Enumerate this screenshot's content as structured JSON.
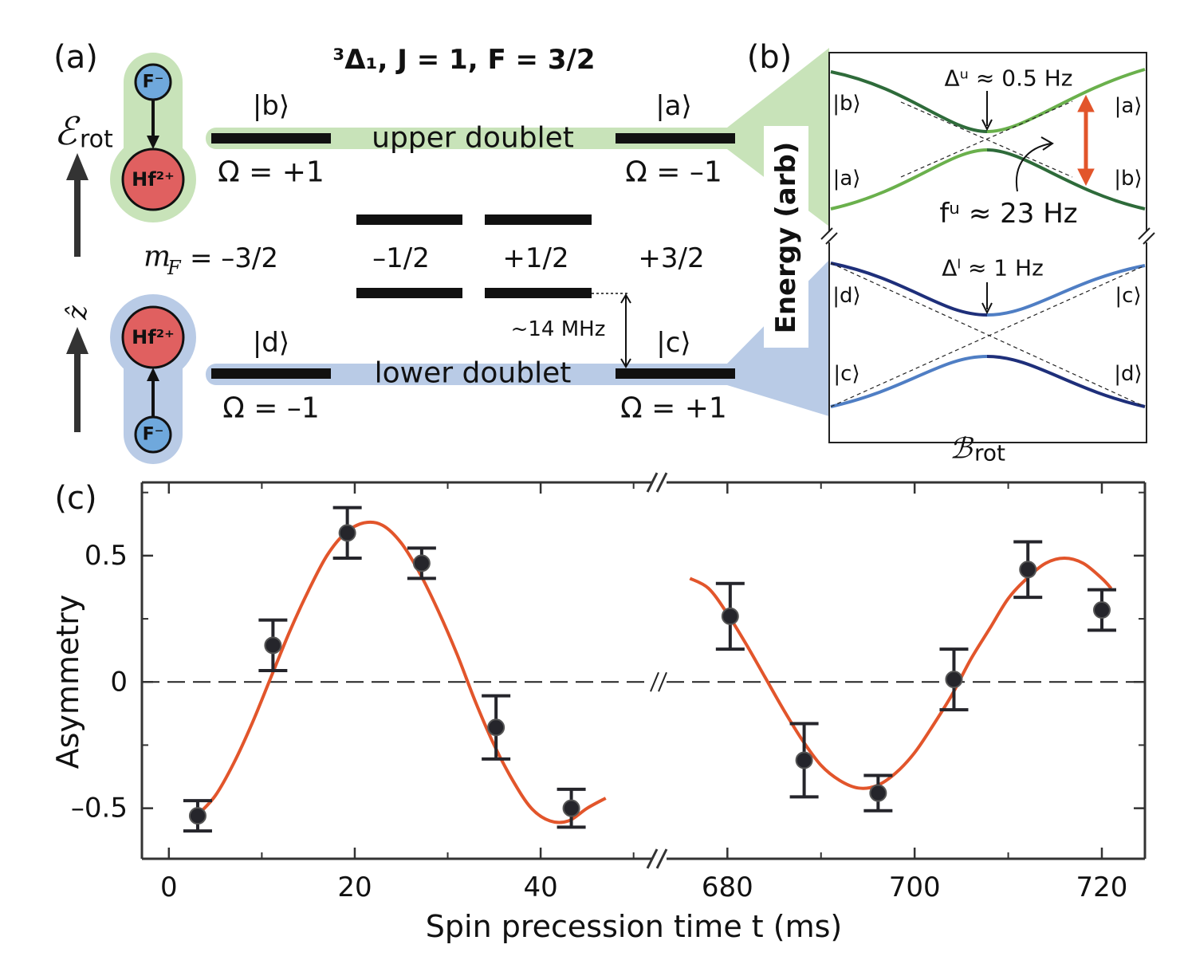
{
  "panel_a": {
    "label": "(a)",
    "title": "³Δ₁, J = 1, F = 3/2",
    "ions": {
      "fluoride": "F⁻",
      "hafnium": "Hf²⁺"
    },
    "field_symbol": "ℰ",
    "field_subscript": "rot",
    "axis_symbol": "ẑ",
    "states": {
      "a": "|a⟩",
      "b": "|b⟩",
      "c": "|c⟩",
      "d": "|d⟩"
    },
    "upper_doublet": "upper doublet",
    "lower_doublet": "lower doublet",
    "omega": {
      "b": "Ω = +1",
      "a": "Ω = –1",
      "d": "Ω = –1",
      "c": "Ω = +1"
    },
    "mF_symbol": "m",
    "mF_subscript": "F",
    "mF_labels": [
      "= –3/2",
      "–1/2",
      "+1/2",
      "+3/2"
    ],
    "splitting": "~14 MHz"
  },
  "panel_b": {
    "label": "(b)",
    "ylabel": "Energy (arb)",
    "xlabel_symbol": "ℬ",
    "xlabel_subscript": "rot",
    "upper_gap": "Δᵘ ≈ 0.5 Hz",
    "upper_frequency": "fᵘ ≈ 23 Hz",
    "lower_gap": "Δˡ ≈ 1 Hz"
  },
  "chart_data": {
    "type": "broken-axis-scatter",
    "panel_label": "(c)",
    "xlabel": "Spin precession time t (ms)",
    "ylabel": "Asymmetry",
    "segments": [
      {
        "xlim": [
          -2.9,
          52.0
        ],
        "xticks": [
          0,
          20,
          40
        ],
        "xminor": [
          10,
          30,
          50
        ]
      },
      {
        "xlim": [
          673.5,
          724.6
        ],
        "xticks": [
          680,
          700,
          720
        ],
        "xminor": [
          690,
          710
        ]
      }
    ],
    "ylim": [
      -0.7,
      0.79
    ],
    "yticks": [
      {
        "value": -0.5,
        "label": "–0.5"
      },
      0,
      0.5
    ],
    "yminor": [
      -0.25,
      0.25,
      0.75
    ],
    "hline": 0,
    "points": {
      "color": "#25252b",
      "x": [
        3.1,
        11.2,
        19.2,
        27.2,
        35.2,
        43.3,
        680.3,
        688.2,
        696.1,
        704.2,
        712.1,
        720.0
      ],
      "values": [
        -0.53,
        0.145,
        0.59,
        0.47,
        -0.18,
        -0.5,
        0.26,
        -0.31,
        -0.44,
        0.01,
        0.445,
        0.285
      ],
      "errors": [
        0.06,
        0.1,
        0.1,
        0.06,
        0.125,
        0.075,
        0.13,
        0.145,
        0.07,
        0.12,
        0.11,
        0.08
      ]
    },
    "fits": [
      {
        "color": "#e2552b",
        "x": [
          3,
          5,
          7,
          9,
          11,
          13,
          15,
          17,
          19,
          21,
          23,
          25,
          27,
          29,
          31,
          33,
          35,
          37,
          39,
          41,
          43,
          45,
          47
        ],
        "values": [
          -0.53,
          -0.45,
          -0.32,
          -0.16,
          0.02,
          0.2,
          0.36,
          0.5,
          0.59,
          0.63,
          0.62,
          0.55,
          0.43,
          0.28,
          0.11,
          -0.08,
          -0.25,
          -0.39,
          -0.5,
          -0.55,
          -0.55,
          -0.5,
          -0.46
        ]
      },
      {
        "color": "#e2552b",
        "x": [
          676,
          678,
          680,
          682,
          684,
          686,
          688,
          690,
          692,
          694,
          696,
          698,
          700,
          702,
          704,
          706,
          708,
          710,
          712,
          714,
          716,
          718,
          720,
          721
        ],
        "values": [
          0.41,
          0.37,
          0.27,
          0.15,
          0.02,
          -0.11,
          -0.23,
          -0.33,
          -0.39,
          -0.42,
          -0.41,
          -0.36,
          -0.28,
          -0.17,
          -0.05,
          0.09,
          0.21,
          0.33,
          0.41,
          0.47,
          0.49,
          0.47,
          0.41,
          0.37
        ]
      }
    ]
  }
}
